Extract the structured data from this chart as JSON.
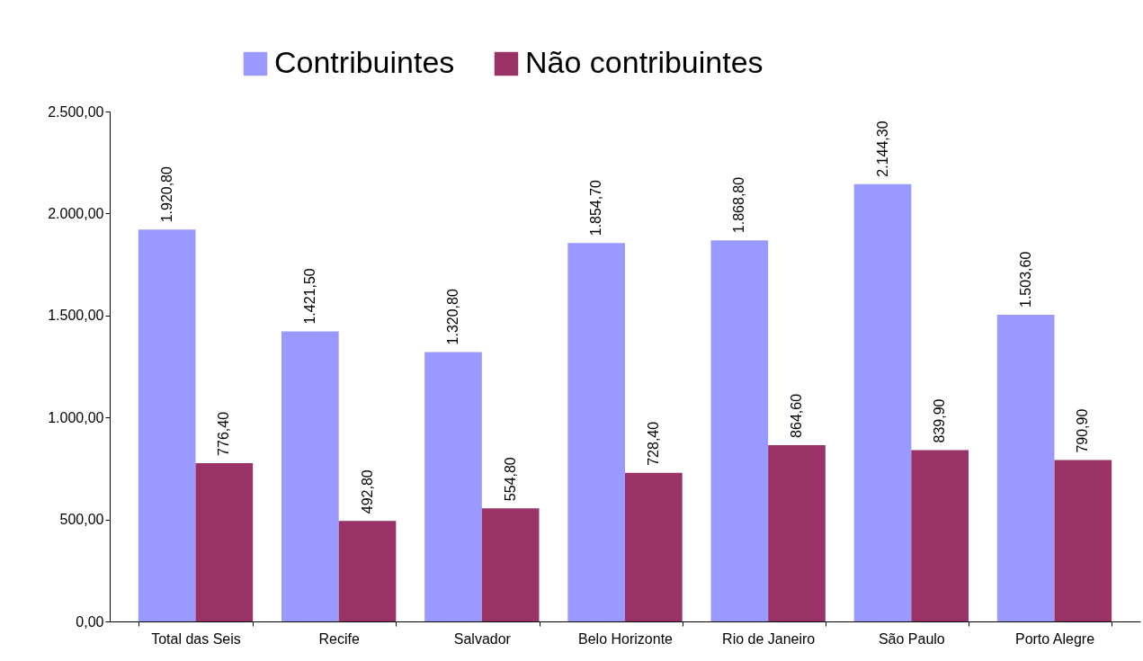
{
  "chart_data": {
    "type": "bar",
    "categories": [
      "Total das Seis",
      "Recife",
      "Salvador",
      "Belo Horizonte",
      "Rio de Janeiro",
      "São Paulo",
      "Porto Alegre"
    ],
    "series": [
      {
        "name": "Contribuintes",
        "color": "#9999ff",
        "values": [
          1920.8,
          1421.5,
          1320.8,
          1854.7,
          1868.8,
          2144.3,
          1503.6
        ],
        "value_labels": [
          "1.920,80",
          "1.421,50",
          "1.320,80",
          "1.854,70",
          "1.868,80",
          "2.144,30",
          "1.503,60"
        ]
      },
      {
        "name": "Não contribuintes",
        "color": "#993366",
        "values": [
          776.4,
          492.8,
          554.8,
          728.4,
          864.6,
          839.9,
          790.9
        ],
        "value_labels": [
          "776,40",
          "492,80",
          "554,80",
          "728,40",
          "864,60",
          "839,90",
          "790,90"
        ]
      }
    ],
    "ylim": [
      0,
      2500
    ],
    "yticks": [
      {
        "value": 0,
        "label": "0,00"
      },
      {
        "value": 500,
        "label": "500,00"
      },
      {
        "value": 1000,
        "label": "1.000,00"
      },
      {
        "value": 1500,
        "label": "1.500,00"
      },
      {
        "value": 2000,
        "label": "2.000,00"
      },
      {
        "value": 2500,
        "label": "2.500,00"
      }
    ],
    "grid": false,
    "legend": "top"
  }
}
